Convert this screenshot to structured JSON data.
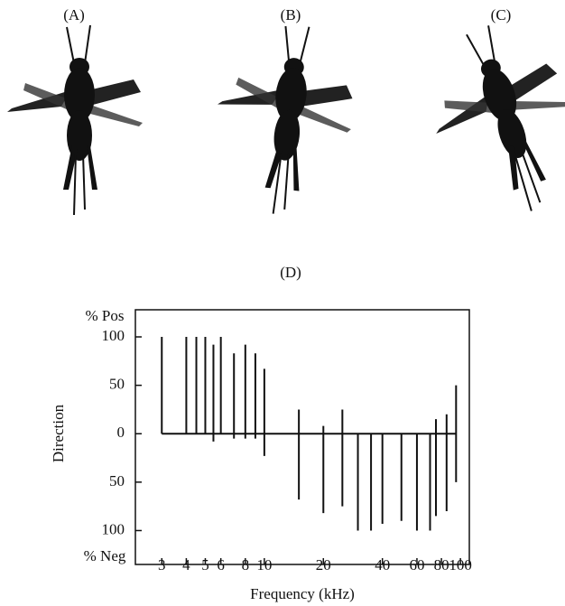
{
  "panels": [
    "(A)",
    "(B)",
    "(C)"
  ],
  "chart_data": {
    "type": "range",
    "title": "(D)",
    "x_label": "Frequency (kHz)",
    "y_label": "Direction",
    "y_top_label": "% Pos",
    "y_bottom_label": "% Neg",
    "x": [
      3,
      4,
      4.5,
      5,
      5.5,
      6,
      7,
      8,
      9,
      10,
      15,
      20,
      25,
      30,
      35,
      40,
      50,
      60,
      70,
      75,
      85,
      95
    ],
    "low": [
      0,
      0,
      0,
      0,
      -8,
      0,
      -5,
      -5,
      -5,
      -23,
      -68,
      -82,
      -75,
      -100,
      -100,
      -93,
      -90,
      -100,
      -100,
      -85,
      -80,
      -50
    ],
    "high": [
      100,
      100,
      100,
      100,
      92,
      100,
      83,
      92,
      83,
      67,
      25,
      8,
      25,
      0,
      0,
      0,
      0,
      0,
      0,
      15,
      20,
      50
    ],
    "color": "#111111",
    "log_x": true,
    "xlim": [
      2.2,
      111
    ],
    "xticks": [
      3,
      4,
      5,
      6,
      8,
      10,
      20,
      40,
      60,
      80,
      100
    ],
    "ylim": [
      -135,
      128
    ],
    "yticks": [
      {
        "value": -100,
        "label": "100"
      },
      {
        "value": -50,
        "label": "50"
      },
      0,
      50,
      100
    ]
  }
}
